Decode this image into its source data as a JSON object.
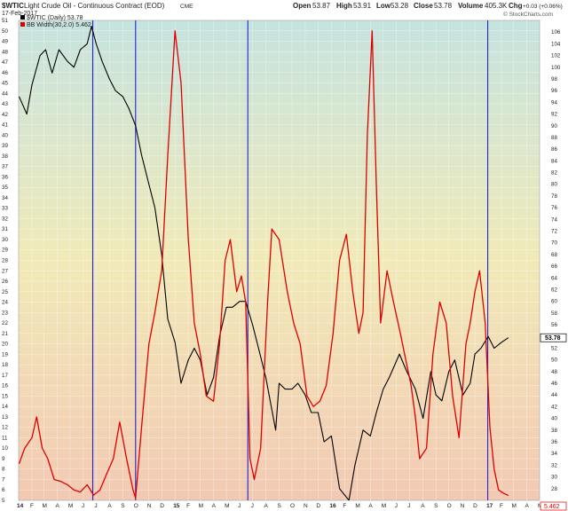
{
  "header": {
    "symbol": "$WTIC",
    "description": "Light Crude Oil - Continuous Contract (EOD)",
    "exchange": "CME",
    "date": "17-Feb-2017",
    "open_label": "Open",
    "open": "53.87",
    "high_label": "High",
    "high": "53.91",
    "low_label": "Low",
    "low": "53.28",
    "close_label": "Close",
    "close": "53.78",
    "volume_label": "Volume",
    "volume": "405.3K",
    "chg_label": "Chg",
    "chg": "+0.03 (+0.06%)",
    "watermark": "© StockCharts.com"
  },
  "legend": [
    {
      "label": "$WTIC (Daily) 53.78",
      "color": "#000000"
    },
    {
      "label": "BB Width(30,2.0) 5.462",
      "color": "#dd0000"
    }
  ],
  "price_badge": "53.78",
  "bbw_badge": "5.462",
  "colors": {
    "price": "#000000",
    "bb_width": "#dd0000",
    "event_lines": "#2222cc",
    "background_top": "#c6e3df",
    "background_mid": "#f1eab8",
    "background_bottom": "#f2c9b3"
  },
  "chart_data": {
    "type": "line",
    "x_range": [
      "2014-01",
      "2017-05"
    ],
    "x_ticks": [
      "14",
      "F",
      "M",
      "A",
      "M",
      "J",
      "J",
      "A",
      "S",
      "O",
      "N",
      "D",
      "15",
      "F",
      "M",
      "A",
      "M",
      "J",
      "J",
      "A",
      "S",
      "O",
      "N",
      "D",
      "16",
      "F",
      "M",
      "A",
      "M",
      "J",
      "J",
      "A",
      "S",
      "O",
      "N",
      "D",
      "17",
      "F",
      "M",
      "A",
      "M"
    ],
    "left_axis": {
      "series": "BB Width(30,2.0)",
      "ylim": [
        5,
        51
      ],
      "ticks": [
        5,
        6,
        7,
        8,
        9,
        10,
        11,
        12,
        13,
        14,
        15,
        16,
        17,
        18,
        19,
        20,
        21,
        22,
        23,
        24,
        25,
        26,
        27,
        28,
        29,
        30,
        31,
        32,
        33,
        34,
        35,
        36,
        37,
        38,
        39,
        40,
        41,
        42,
        43,
        44,
        45,
        46,
        47,
        48,
        49,
        50,
        51
      ]
    },
    "right_axis": {
      "series": "$WTIC (Daily)",
      "ylim": [
        26,
        108
      ],
      "ticks": [
        28,
        30,
        32,
        34,
        36,
        38,
        40,
        42,
        44,
        46,
        48,
        50,
        52,
        54,
        56,
        58,
        60,
        62,
        64,
        66,
        68,
        70,
        72,
        74,
        76,
        78,
        80,
        82,
        84,
        86,
        88,
        90,
        92,
        94,
        96,
        98,
        100,
        102,
        104,
        106
      ]
    },
    "vertical_lines": [
      "2014-06-23",
      "2014-10-01",
      "2015-06-20",
      "2016-12-31"
    ],
    "grid": true,
    "series": [
      {
        "name": "$WTIC (Daily)",
        "axis": "right",
        "points": [
          [
            "2014-01-02",
            95
          ],
          [
            "2014-01-20",
            92
          ],
          [
            "2014-02-01",
            97
          ],
          [
            "2014-02-20",
            102
          ],
          [
            "2014-03-05",
            103
          ],
          [
            "2014-03-20",
            99
          ],
          [
            "2014-04-05",
            103
          ],
          [
            "2014-04-25",
            101
          ],
          [
            "2014-05-10",
            100
          ],
          [
            "2014-05-25",
            103
          ],
          [
            "2014-06-10",
            104
          ],
          [
            "2014-06-20",
            107
          ],
          [
            "2014-07-01",
            104
          ],
          [
            "2014-07-15",
            101
          ],
          [
            "2014-08-01",
            98
          ],
          [
            "2014-08-15",
            96
          ],
          [
            "2014-09-01",
            95
          ],
          [
            "2014-09-15",
            93
          ],
          [
            "2014-10-01",
            90
          ],
          [
            "2014-10-15",
            85
          ],
          [
            "2014-11-01",
            80
          ],
          [
            "2014-11-15",
            76
          ],
          [
            "2014-12-01",
            68
          ],
          [
            "2014-12-15",
            57
          ],
          [
            "2015-01-01",
            53
          ],
          [
            "2015-01-15",
            46
          ],
          [
            "2015-02-01",
            50
          ],
          [
            "2015-02-15",
            52
          ],
          [
            "2015-03-01",
            50
          ],
          [
            "2015-03-17",
            44
          ],
          [
            "2015-04-01",
            47
          ],
          [
            "2015-04-15",
            54
          ],
          [
            "2015-05-01",
            59
          ],
          [
            "2015-05-15",
            59
          ],
          [
            "2015-06-01",
            60
          ],
          [
            "2015-06-15",
            60
          ],
          [
            "2015-07-01",
            56
          ],
          [
            "2015-07-15",
            52
          ],
          [
            "2015-08-01",
            47
          ],
          [
            "2015-08-24",
            38
          ],
          [
            "2015-09-01",
            46
          ],
          [
            "2015-09-15",
            45
          ],
          [
            "2015-10-01",
            45
          ],
          [
            "2015-10-15",
            46
          ],
          [
            "2015-11-01",
            44
          ],
          [
            "2015-11-15",
            41
          ],
          [
            "2015-12-01",
            41
          ],
          [
            "2015-12-15",
            36
          ],
          [
            "2016-01-01",
            37
          ],
          [
            "2016-01-20",
            28
          ],
          [
            "2016-02-11",
            26
          ],
          [
            "2016-02-25",
            32
          ],
          [
            "2016-03-15",
            38
          ],
          [
            "2016-04-01",
            37
          ],
          [
            "2016-04-15",
            41
          ],
          [
            "2016-05-01",
            45
          ],
          [
            "2016-05-15",
            47
          ],
          [
            "2016-06-08",
            51
          ],
          [
            "2016-06-25",
            48
          ],
          [
            "2016-07-15",
            45
          ],
          [
            "2016-08-02",
            40
          ],
          [
            "2016-08-20",
            48
          ],
          [
            "2016-09-01",
            44
          ],
          [
            "2016-09-15",
            43
          ],
          [
            "2016-10-01",
            48
          ],
          [
            "2016-10-15",
            50
          ],
          [
            "2016-11-03",
            44
          ],
          [
            "2016-11-20",
            46
          ],
          [
            "2016-12-01",
            51
          ],
          [
            "2016-12-15",
            52
          ],
          [
            "2017-01-01",
            54
          ],
          [
            "2017-01-15",
            52
          ],
          [
            "2017-02-01",
            53
          ],
          [
            "2017-02-17",
            53.78
          ]
        ]
      },
      {
        "name": "BB Width(30,2.0)",
        "axis": "left",
        "points": [
          [
            "2014-01-02",
            8.5
          ],
          [
            "2014-01-15",
            10
          ],
          [
            "2014-02-01",
            11
          ],
          [
            "2014-02-12",
            13
          ],
          [
            "2014-02-25",
            10
          ],
          [
            "2014-03-10",
            9
          ],
          [
            "2014-03-25",
            7
          ],
          [
            "2014-04-10",
            6.8
          ],
          [
            "2014-04-25",
            6.5
          ],
          [
            "2014-05-10",
            6
          ],
          [
            "2014-05-25",
            5.8
          ],
          [
            "2014-06-10",
            6.5
          ],
          [
            "2014-06-25",
            5.5
          ],
          [
            "2014-07-10",
            6
          ],
          [
            "2014-07-25",
            7.5
          ],
          [
            "2014-08-10",
            9
          ],
          [
            "2014-08-25",
            12.5
          ],
          [
            "2014-09-10",
            9
          ],
          [
            "2014-09-25",
            6
          ],
          [
            "2014-10-01",
            5.2
          ],
          [
            "2014-10-15",
            12
          ],
          [
            "2014-11-01",
            20
          ],
          [
            "2014-11-15",
            23
          ],
          [
            "2014-12-01",
            27
          ],
          [
            "2014-12-15",
            38
          ],
          [
            "2015-01-01",
            50
          ],
          [
            "2015-01-15",
            45
          ],
          [
            "2015-02-01",
            30
          ],
          [
            "2015-02-15",
            22
          ],
          [
            "2015-03-01",
            19
          ],
          [
            "2015-03-15",
            15
          ],
          [
            "2015-04-01",
            14.5
          ],
          [
            "2015-04-15",
            20
          ],
          [
            "2015-04-28",
            28
          ],
          [
            "2015-05-10",
            30
          ],
          [
            "2015-05-25",
            25
          ],
          [
            "2015-06-05",
            26.5
          ],
          [
            "2015-06-15",
            24
          ],
          [
            "2015-06-25",
            9
          ],
          [
            "2015-07-05",
            7
          ],
          [
            "2015-07-20",
            10
          ],
          [
            "2015-08-05",
            24
          ],
          [
            "2015-08-15",
            31
          ],
          [
            "2015-09-01",
            30
          ],
          [
            "2015-09-20",
            25
          ],
          [
            "2015-10-05",
            22
          ],
          [
            "2015-10-20",
            20
          ],
          [
            "2015-11-05",
            15
          ],
          [
            "2015-11-20",
            14
          ],
          [
            "2015-12-05",
            14.5
          ],
          [
            "2015-12-20",
            16
          ],
          [
            "2016-01-05",
            21
          ],
          [
            "2016-01-20",
            28
          ],
          [
            "2016-02-05",
            30.5
          ],
          [
            "2016-02-20",
            25
          ],
          [
            "2016-03-05",
            21
          ],
          [
            "2016-03-15",
            23
          ],
          [
            "2016-03-25",
            40
          ],
          [
            "2016-04-05",
            50
          ],
          [
            "2016-04-15",
            35
          ],
          [
            "2016-04-25",
            22
          ],
          [
            "2016-05-10",
            27
          ],
          [
            "2016-05-25",
            24
          ],
          [
            "2016-06-10",
            21
          ],
          [
            "2016-06-20",
            19
          ],
          [
            "2016-07-05",
            16
          ],
          [
            "2016-07-15",
            13
          ],
          [
            "2016-07-25",
            9
          ],
          [
            "2016-08-10",
            10
          ],
          [
            "2016-08-25",
            19
          ],
          [
            "2016-09-10",
            24
          ],
          [
            "2016-09-25",
            22
          ],
          [
            "2016-10-10",
            15
          ],
          [
            "2016-10-25",
            11
          ],
          [
            "2016-11-10",
            20
          ],
          [
            "2016-11-20",
            22
          ],
          [
            "2016-12-01",
            25
          ],
          [
            "2016-12-12",
            27
          ],
          [
            "2016-12-25",
            22
          ],
          [
            "2017-01-05",
            12
          ],
          [
            "2017-01-15",
            8
          ],
          [
            "2017-01-25",
            6
          ],
          [
            "2017-02-05",
            5.7
          ],
          [
            "2017-02-17",
            5.46
          ]
        ]
      }
    ]
  }
}
